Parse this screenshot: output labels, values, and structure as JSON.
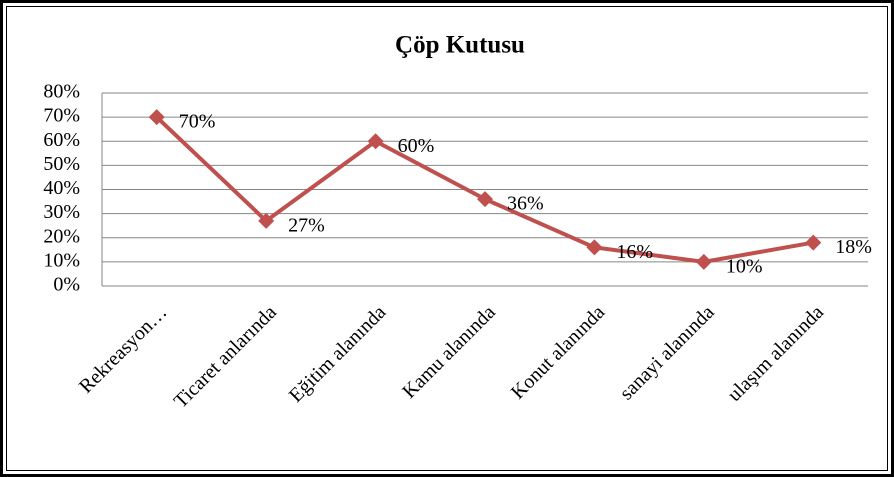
{
  "chart_data": {
    "type": "line",
    "title": "Çöp Kutusu",
    "categories": [
      "Rekreasyon…",
      "Ticaret anlarında",
      "Eğitim alanında",
      "Kamu alanında",
      "Konut alanında",
      "sanayi alanında",
      "ulaşım alanında"
    ],
    "values": [
      70,
      27,
      60,
      36,
      16,
      10,
      18
    ],
    "value_labels": [
      "70%",
      "27%",
      "60%",
      "36%",
      "16%",
      "10%",
      "18%"
    ],
    "color": "#c0504d",
    "ylim": [
      0,
      80
    ],
    "yticks": [
      {
        "value": 0,
        "label": "0%"
      },
      {
        "value": 10,
        "label": "10%"
      },
      {
        "value": 20,
        "label": "20%"
      },
      {
        "value": 30,
        "label": "30%"
      },
      {
        "value": 40,
        "label": "40%"
      },
      {
        "value": 50,
        "label": "50%"
      },
      {
        "value": 60,
        "label": "60%"
      },
      {
        "value": 70,
        "label": "70%"
      },
      {
        "value": 80,
        "label": "80%"
      }
    ],
    "grid": true
  }
}
